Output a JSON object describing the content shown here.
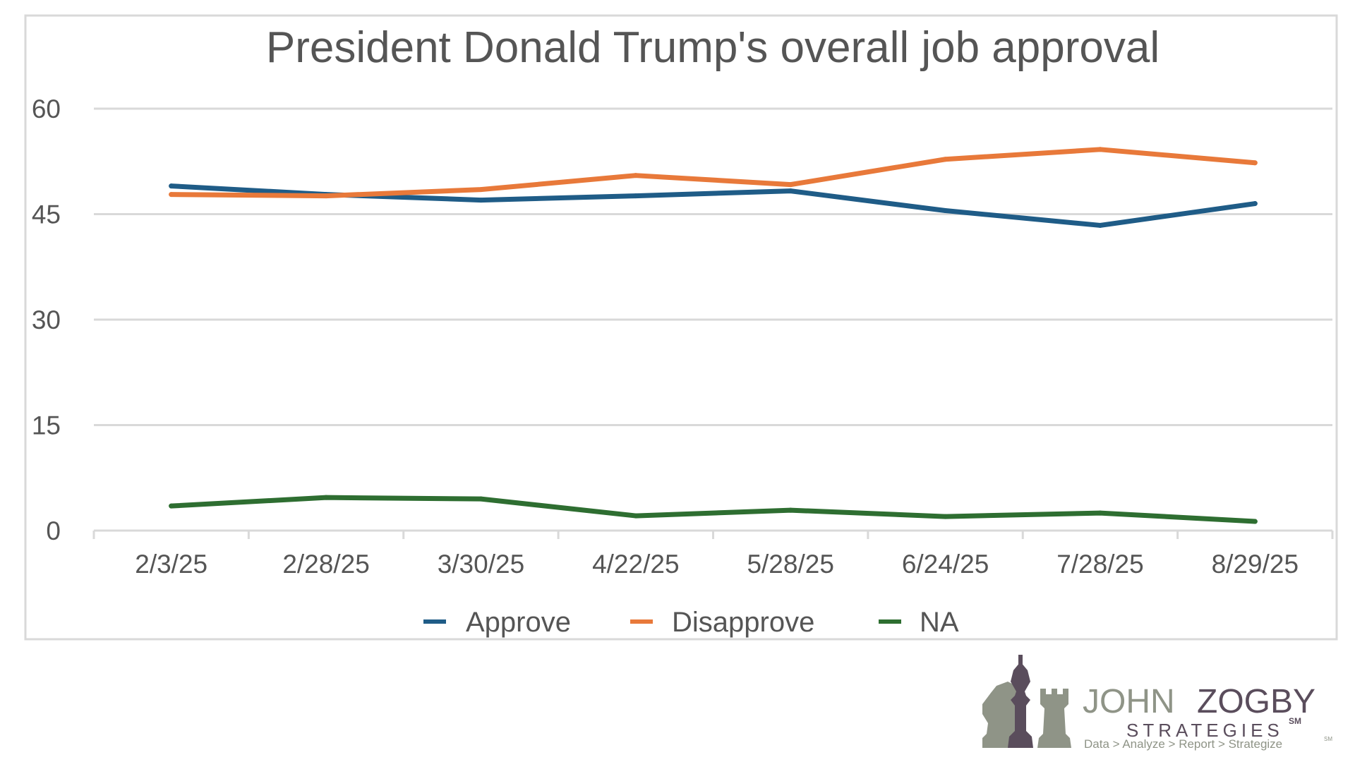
{
  "chart_data": {
    "type": "line",
    "title": "President Donald Trump's overall job approval",
    "xlabel": "",
    "ylabel": "",
    "categories": [
      "2/3/25",
      "2/28/25",
      "3/30/25",
      "4/22/25",
      "5/28/25",
      "6/24/25",
      "7/28/25",
      "8/29/25"
    ],
    "series": [
      {
        "name": "Approve",
        "color": "#1f5c87",
        "values": [
          49.0,
          47.8,
          47.0,
          47.6,
          48.3,
          45.5,
          43.4,
          46.5
        ]
      },
      {
        "name": "Disapprove",
        "color": "#e8793a",
        "values": [
          47.8,
          47.6,
          48.5,
          50.5,
          49.2,
          52.8,
          54.2,
          52.3
        ]
      },
      {
        "name": "NA",
        "color": "#2e6e31",
        "values": [
          3.5,
          4.7,
          4.5,
          2.1,
          2.9,
          2.0,
          2.5,
          1.3
        ]
      }
    ],
    "ylim": [
      0,
      60
    ],
    "yticks": [
      "0",
      "15",
      "30",
      "45",
      "60"
    ],
    "grid": true,
    "legend_position": "bottom"
  },
  "logo": {
    "name_part1": "JOHN",
    "name_part2": "ZOGBY",
    "mark": "SM",
    "company": "STRATEGIES",
    "tagline": "Data > Analyze > Report > Strategize",
    "tagline_mark": "SM",
    "colors": {
      "gray": "#8f9487",
      "purple": "#5a4d5c"
    }
  }
}
